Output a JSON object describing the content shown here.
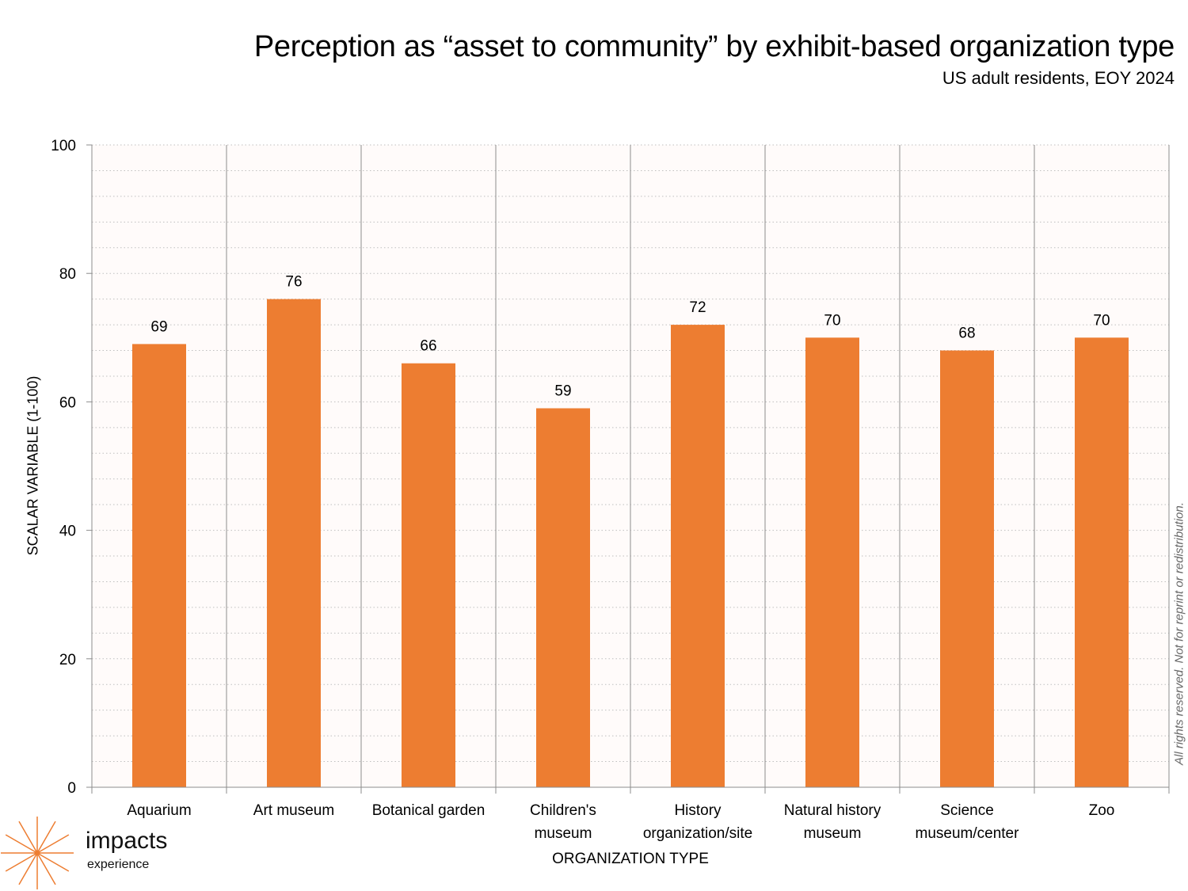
{
  "header": {
    "title": "Perception as “asset to community” by exhibit-based organization type",
    "subtitle": "US adult residents, EOY 2024"
  },
  "footer": {
    "copyright": "All rights reserved. Not for reprint or redistribution.",
    "logo_word": "impacts",
    "logo_sub": "experience",
    "watermark_word": "impacts",
    "watermark_sub": "experience"
  },
  "colors": {
    "bar": "#ED7D31",
    "plot_bg": "#FFFBFA",
    "grid": "#BFBFBF",
    "divider": "#8C8C8C",
    "watermark": "#FDE3CF"
  },
  "chart_data": {
    "type": "bar",
    "title": "Perception as “asset to community” by exhibit-based organization type",
    "subtitle": "US adult residents, EOY 2024",
    "xlabel": "ORGANIZATION TYPE",
    "ylabel": "SCALAR VARIABLE (1-100)",
    "ylim": [
      0,
      100
    ],
    "yticks": [
      0,
      20,
      40,
      60,
      80,
      100
    ],
    "minor_grid_step": 4,
    "grid": true,
    "legend": "none",
    "categories": [
      [
        "Aquarium"
      ],
      [
        "Art museum"
      ],
      [
        "Botanical garden"
      ],
      [
        "Children's",
        "museum"
      ],
      [
        "History",
        "organization/site"
      ],
      [
        "Natural history",
        "museum"
      ],
      [
        "Science",
        "museum/center"
      ],
      [
        "Zoo"
      ]
    ],
    "values": [
      69,
      76,
      66,
      59,
      72,
      70,
      68,
      70
    ]
  }
}
